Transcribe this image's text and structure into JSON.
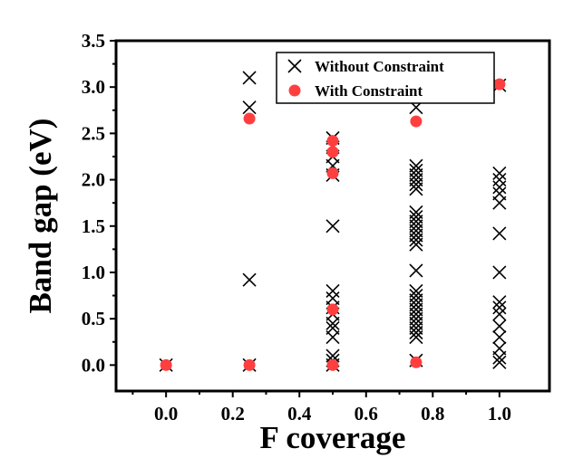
{
  "chart_data": {
    "type": "scatter",
    "xlabel": "F coverage",
    "ylabel": "Band gap (eV)",
    "xlim": [
      -0.15,
      1.15
    ],
    "ylim": [
      -0.28,
      3.5
    ],
    "xticks": [
      "0.0",
      "0.2",
      "0.4",
      "0.6",
      "0.8",
      "1.0"
    ],
    "yticks": [
      "0.0",
      "0.5",
      "1.0",
      "1.5",
      "2.0",
      "2.5",
      "3.0",
      "3.5"
    ],
    "legend_position": "top-right",
    "grid": false,
    "series": [
      {
        "name": "Without Constraint",
        "marker": "x",
        "color": "#000000",
        "points": [
          [
            0.0,
            0.0
          ],
          [
            0.25,
            0.0
          ],
          [
            0.25,
            0.92
          ],
          [
            0.25,
            2.78
          ],
          [
            0.25,
            3.1
          ],
          [
            0.5,
            0.0
          ],
          [
            0.5,
            0.05
          ],
          [
            0.5,
            0.1
          ],
          [
            0.5,
            0.3
          ],
          [
            0.5,
            0.4
          ],
          [
            0.5,
            0.45
          ],
          [
            0.5,
            0.55
          ],
          [
            0.5,
            0.62
          ],
          [
            0.5,
            0.72
          ],
          [
            0.5,
            0.8
          ],
          [
            0.5,
            1.5
          ],
          [
            0.5,
            2.05
          ],
          [
            0.5,
            2.15
          ],
          [
            0.5,
            2.25
          ],
          [
            0.5,
            2.35
          ],
          [
            0.5,
            2.45
          ],
          [
            0.75,
            0.05
          ],
          [
            0.75,
            0.3
          ],
          [
            0.75,
            0.35
          ],
          [
            0.75,
            0.4
          ],
          [
            0.75,
            0.45
          ],
          [
            0.75,
            0.5
          ],
          [
            0.75,
            0.55
          ],
          [
            0.75,
            0.6
          ],
          [
            0.75,
            0.65
          ],
          [
            0.75,
            0.7
          ],
          [
            0.75,
            0.75
          ],
          [
            0.75,
            0.8
          ],
          [
            0.75,
            1.02
          ],
          [
            0.75,
            1.3
          ],
          [
            0.75,
            1.35
          ],
          [
            0.75,
            1.4
          ],
          [
            0.75,
            1.45
          ],
          [
            0.75,
            1.5
          ],
          [
            0.75,
            1.55
          ],
          [
            0.75,
            1.6
          ],
          [
            0.75,
            1.65
          ],
          [
            0.75,
            1.9
          ],
          [
            0.75,
            1.95
          ],
          [
            0.75,
            2.0
          ],
          [
            0.75,
            2.05
          ],
          [
            0.75,
            2.1
          ],
          [
            0.75,
            2.15
          ],
          [
            0.75,
            2.78
          ],
          [
            1.0,
            0.03
          ],
          [
            1.0,
            0.08
          ],
          [
            1.0,
            0.18
          ],
          [
            1.0,
            0.3
          ],
          [
            1.0,
            0.42
          ],
          [
            1.0,
            0.55
          ],
          [
            1.0,
            0.62
          ],
          [
            1.0,
            0.68
          ],
          [
            1.0,
            1.0
          ],
          [
            1.0,
            1.42
          ],
          [
            1.0,
            1.75
          ],
          [
            1.0,
            1.85
          ],
          [
            1.0,
            1.92
          ],
          [
            1.0,
            2.0
          ],
          [
            1.0,
            2.07
          ],
          [
            1.0,
            3.02
          ]
        ]
      },
      {
        "name": "With Constraint",
        "marker": "circle",
        "color": "#ff3f3f",
        "points": [
          [
            0.0,
            0.0
          ],
          [
            0.25,
            0.0
          ],
          [
            0.25,
            2.66
          ],
          [
            0.5,
            0.0
          ],
          [
            0.5,
            0.6
          ],
          [
            0.5,
            2.07
          ],
          [
            0.5,
            2.3
          ],
          [
            0.5,
            2.42
          ],
          [
            0.75,
            0.03
          ],
          [
            0.75,
            2.63
          ],
          [
            1.0,
            3.03
          ]
        ]
      }
    ]
  }
}
